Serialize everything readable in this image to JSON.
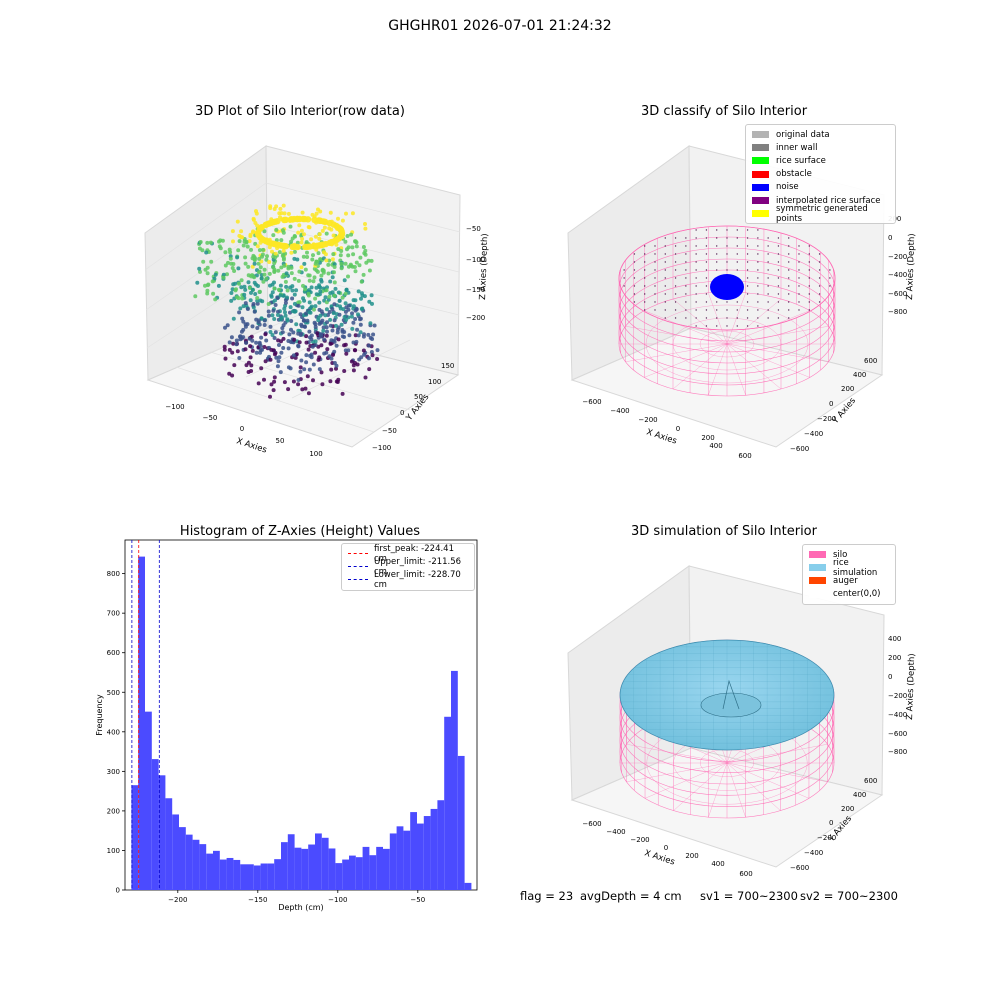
{
  "suptitle": "GHGHR01 2026-07-01 21:24:32",
  "colors": {
    "silo": "#ff69b4",
    "rice": "#87ceeb",
    "auger": "#ff4500",
    "noise": "#0000ff",
    "hist": "#4b4bff",
    "peak_line": "#ff0000",
    "limit_line": "#0000cc"
  },
  "plot1": {
    "title": "3D Plot of Silo Interior(row data)",
    "xlabel": "X Axies",
    "ylabel": "Y Axies",
    "zlabel": "Z Axies (Depth)",
    "xticks": [
      "−100",
      "−50",
      "0",
      "50",
      "100"
    ],
    "yticks": [
      "−100",
      "−50",
      "0",
      "50",
      "100",
      "150"
    ],
    "zticks": [
      "−50",
      "−100",
      "−150",
      "−200"
    ]
  },
  "plot2": {
    "title": "3D classify of Silo Interior",
    "xlabel": "X Axies",
    "ylabel": "Y Axies",
    "zlabel": "Z Axies (Depth)",
    "xticks": [
      "−600",
      "−400",
      "−200",
      "0",
      "200",
      "400",
      "600"
    ],
    "yticks": [
      "−600",
      "−400",
      "−200",
      "0",
      "200",
      "400",
      "600"
    ],
    "zticks": [
      "200",
      "0",
      "−200",
      "−400",
      "−600",
      "−800"
    ],
    "legend": [
      {
        "label": "original data",
        "color": "#b3b3b3"
      },
      {
        "label": "inner wall",
        "color": "#808080"
      },
      {
        "label": "rice surface",
        "color": "#00ff00"
      },
      {
        "label": "obstacle",
        "color": "#ff0000"
      },
      {
        "label": "noise",
        "color": "#0000ff"
      },
      {
        "label": "interpolated rice surface",
        "color": "#800080"
      },
      {
        "label": "symmetric generated points",
        "color": "#ffff00"
      }
    ]
  },
  "plot4": {
    "title": "3D simulation of Silo Interior",
    "xlabel": "X Axies",
    "ylabel": "Y Axies",
    "zlabel": "Z Axies (Depth)",
    "xticks": [
      "−600",
      "−400",
      "−200",
      "0",
      "200",
      "400",
      "600"
    ],
    "yticks": [
      "−600",
      "−400",
      "−200",
      "0",
      "200",
      "400",
      "600"
    ],
    "zticks": [
      "400",
      "200",
      "0",
      "−200",
      "−400",
      "−600",
      "−800"
    ],
    "legend": [
      {
        "label": "silo",
        "color": "#ff69b4"
      },
      {
        "label": "rice simulation",
        "color": "#87ceeb"
      },
      {
        "label": "auger",
        "color": "#ff4500"
      },
      {
        "label": "center(0,0)",
        "color": "#ffffff"
      }
    ]
  },
  "status": {
    "flag": "flag = 23",
    "avg": "avgDepth = 4 cm",
    "sv1": "sv1 = 700~2300",
    "sv2": "sv2 = 700~2300"
  },
  "chart_data": [
    {
      "type": "bar",
      "title": "Histogram of Z-Axies (Height) Values",
      "xlabel": "Depth (cm)",
      "ylabel": "Frequency",
      "xlim": [
        -233,
        -13
      ],
      "ylim": [
        0,
        885
      ],
      "xticks": [
        -200,
        -150,
        -100,
        -50
      ],
      "xtick_labels": [
        "−200",
        "−150",
        "−100",
        "−50"
      ],
      "yticks": [
        0,
        100,
        200,
        300,
        400,
        500,
        600,
        700,
        800
      ],
      "bin_start": -229,
      "bin_width": 4.25,
      "values": [
        265,
        843,
        451,
        331,
        290,
        232,
        191,
        159,
        140,
        127,
        116,
        92,
        99,
        77,
        81,
        76,
        65,
        65,
        62,
        67,
        67,
        78,
        121,
        141,
        107,
        104,
        115,
        143,
        132,
        105,
        68,
        77,
        87,
        83,
        109,
        88,
        109,
        104,
        143,
        161,
        150,
        197,
        168,
        187,
        205,
        227,
        438,
        554,
        339,
        18
      ],
      "vlines": [
        {
          "label": "first_peak: -224.41 cm",
          "x": -224.41,
          "color": "#ff0000"
        },
        {
          "label": "Upper_limit: -211.56 cm",
          "x": -211.56,
          "color": "#0000cc"
        },
        {
          "label": "Lower_limit: -228.70 cm",
          "x": -228.7,
          "color": "#0000cc"
        }
      ],
      "legend_position": "upper-right"
    }
  ]
}
